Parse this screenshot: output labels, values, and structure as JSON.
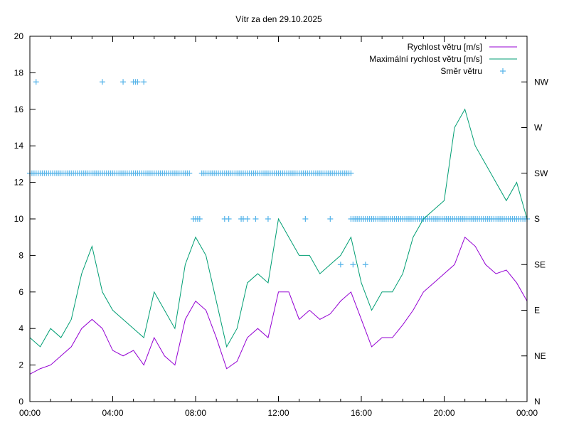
{
  "chart_data": {
    "type": "line",
    "title": "Vítr za den 29.10.2025",
    "xlabel": "",
    "ylabel": "",
    "xlim": [
      0,
      24
    ],
    "ylim": [
      0,
      20
    ],
    "y2lim_deg": [
      0,
      360
    ],
    "x_tick_labels": [
      "00:00",
      "04:00",
      "08:00",
      "12:00",
      "16:00",
      "20:00",
      "00:00"
    ],
    "x_tick_values": [
      0,
      4,
      8,
      12,
      16,
      20,
      24
    ],
    "y_tick_values": [
      0,
      2,
      4,
      6,
      8,
      10,
      12,
      14,
      16,
      18,
      20
    ],
    "y2_ticks": [
      {
        "label": "N",
        "deg": 0
      },
      {
        "label": "NE",
        "deg": 45
      },
      {
        "label": "E",
        "deg": 90
      },
      {
        "label": "SE",
        "deg": 135
      },
      {
        "label": "S",
        "deg": 180
      },
      {
        "label": "SW",
        "deg": 225
      },
      {
        "label": "W",
        "deg": 270
      },
      {
        "label": "NW",
        "deg": 315
      }
    ],
    "legend_position": "top-right",
    "x_hours": [
      0,
      0.5,
      1,
      1.5,
      2,
      2.5,
      3,
      3.5,
      4,
      4.5,
      5,
      5.5,
      6,
      6.5,
      7,
      7.5,
      8,
      8.5,
      9,
      9.5,
      10,
      10.5,
      11,
      11.5,
      12,
      12.5,
      13,
      13.5,
      14,
      14.5,
      15,
      15.5,
      16,
      16.5,
      17,
      17.5,
      18,
      18.5,
      19,
      19.5,
      20,
      20.5,
      21,
      21.5,
      22,
      22.5,
      23,
      23.5,
      24
    ],
    "series": [
      {
        "name": "Rychlost větru [m/s]",
        "color": "#9400d3",
        "style": "line",
        "values": [
          1.5,
          1.8,
          2.0,
          2.5,
          3.0,
          4.0,
          4.5,
          4.0,
          2.8,
          2.5,
          2.8,
          2.0,
          3.5,
          2.5,
          2.0,
          4.5,
          5.5,
          5.0,
          3.5,
          1.8,
          2.2,
          3.5,
          4.0,
          3.5,
          6.0,
          6.0,
          4.5,
          5.0,
          4.5,
          4.8,
          5.5,
          6.0,
          4.5,
          3.0,
          3.5,
          3.5,
          4.2,
          5.0,
          6.0,
          6.5,
          7.0,
          7.5,
          9.0,
          8.5,
          7.5,
          7.0,
          7.2,
          6.5,
          5.5
        ]
      },
      {
        "name": "Maximální rychlost větru [m/s]",
        "color": "#009e73",
        "style": "line",
        "values": [
          3.5,
          3.0,
          4.0,
          3.5,
          4.5,
          7.0,
          8.5,
          6.0,
          5.0,
          4.5,
          4.0,
          3.5,
          6.0,
          5.0,
          4.0,
          7.5,
          9.0,
          8.0,
          5.5,
          3.0,
          4.0,
          6.5,
          7.0,
          6.5,
          10.0,
          9.0,
          8.0,
          8.0,
          7.0,
          7.5,
          8.0,
          9.0,
          6.5,
          5.0,
          6.0,
          6.0,
          7.0,
          9.0,
          10.0,
          10.5,
          11.0,
          15.0,
          16.0,
          14.0,
          13.0,
          12.0,
          11.0,
          12.0,
          10.0
        ]
      },
      {
        "name": "Směr větru",
        "color": "#56b4e9",
        "style": "points",
        "segments": [
          {
            "from_h": 0,
            "to_h": 7.7,
            "deg": 225,
            "step_h": 0.1
          },
          {
            "from_h": 8.3,
            "to_h": 15.5,
            "deg": 225,
            "step_h": 0.1
          },
          {
            "from_h": 15.6,
            "to_h": 24,
            "deg": 180,
            "step_h": 0.1
          }
        ],
        "points_h_deg": [
          [
            0.3,
            315
          ],
          [
            3.5,
            315
          ],
          [
            4.5,
            315
          ],
          [
            5.0,
            315
          ],
          [
            5.1,
            315
          ],
          [
            5.2,
            315
          ],
          [
            5.5,
            315
          ],
          [
            7.9,
            180
          ],
          [
            8.0,
            180
          ],
          [
            8.1,
            180
          ],
          [
            8.2,
            180
          ],
          [
            9.4,
            180
          ],
          [
            9.6,
            180
          ],
          [
            10.2,
            180
          ],
          [
            10.3,
            180
          ],
          [
            10.5,
            180
          ],
          [
            10.9,
            180
          ],
          [
            11.5,
            180
          ],
          [
            13.3,
            180
          ],
          [
            14.5,
            180
          ],
          [
            15.5,
            180
          ],
          [
            15.0,
            135
          ],
          [
            15.6,
            135
          ],
          [
            16.2,
            135
          ]
        ]
      }
    ]
  }
}
